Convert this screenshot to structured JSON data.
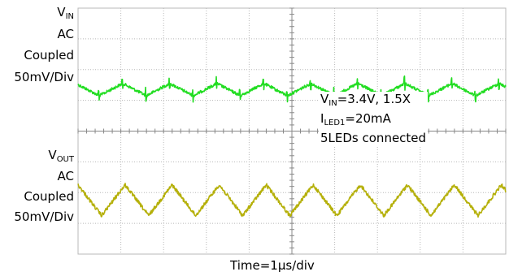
{
  "labels": {
    "vin_main": "V",
    "vin_sub": "IN",
    "ac": "AC",
    "coupled": "Coupled",
    "scale": "50mV/Div",
    "vout_main": "V",
    "vout_sub": "OUT"
  },
  "info": {
    "line1_main": "V",
    "line1_sub": "IN",
    "line1_rest": "=3.4V, 1.5X",
    "line2_main": "I",
    "line2_sub": "LED1",
    "line2_rest": "=20mA",
    "line3": "5LEDs connected"
  },
  "xlabel": "Time=1μs/div",
  "colors": {
    "vin_trace": "#22dd22",
    "vout_trace": "#b5b00a",
    "grid": "#b8b8b8"
  },
  "chart_data": {
    "type": "line",
    "title": "",
    "xlabel": "Time=1μs/div",
    "x_divisions": 10,
    "y_divisions": 8,
    "grid": true,
    "series": [
      {
        "name": "VIN",
        "waveform": "triangle with switching spikes",
        "period_divisions": 1.1,
        "amplitude_divisions": 0.4,
        "center_division": 5.35
      },
      {
        "name": "VOUT",
        "waveform": "triangle",
        "period_divisions": 1.1,
        "amplitude_divisions": 1.0,
        "center_division": 1.75
      }
    ]
  }
}
